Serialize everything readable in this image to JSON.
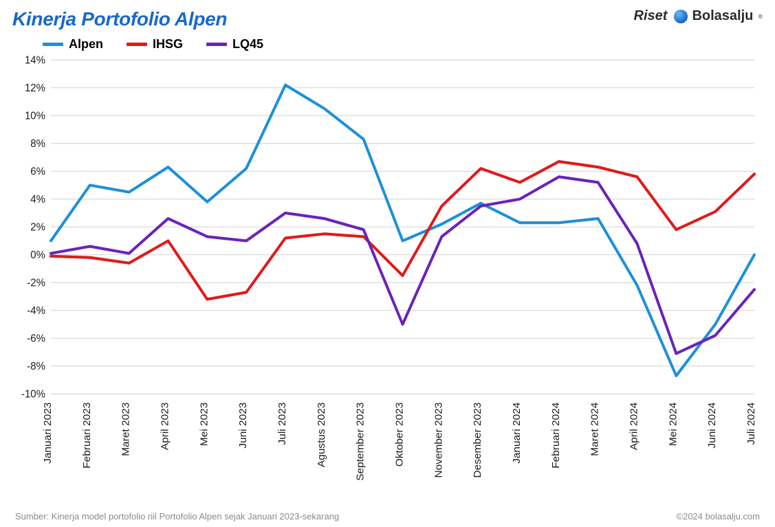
{
  "title": "Kinerja Portofolio Alpen",
  "brand": {
    "riset": "Riset",
    "name": "Bolasalju",
    "trademark": "®"
  },
  "footer": {
    "source": "Sumber: Kinerja model portofolio riil Portofolio Alpen sejak Januari 2023-sekarang",
    "copyright": "©2024 bolasalju.com"
  },
  "chart": {
    "type": "line",
    "background_color": "#ffffff",
    "grid_color": "#d0d0d0",
    "axis_color": "#1a1a1a",
    "line_width": 4,
    "title_color": "#1968c8",
    "title_fontsize": 28,
    "label_fontsize": 15,
    "legend_fontsize": 18,
    "ylim": [
      -10,
      14
    ],
    "ytick_step": 2,
    "y_suffix": "%",
    "x_labels": [
      "Januari 2023",
      "Februari 2023",
      "Maret 2023",
      "April 2023",
      "Mei 2023",
      "Juni 2023",
      "Juli 2023",
      "Agustus 2023",
      "September 2023",
      "Oktober 2023",
      "November 2023",
      "Desember 2023",
      "Januari 2024",
      "Februari 2024",
      "Maret 2024",
      "April 2024",
      "Mei 2024",
      "Juni 2024",
      "Juli 2024"
    ],
    "series": [
      {
        "name": "Alpen",
        "color": "#1e90d8",
        "values": [
          1.0,
          5.0,
          4.5,
          6.3,
          3.8,
          6.2,
          12.2,
          10.5,
          8.3,
          1.0,
          2.2,
          3.7,
          2.3,
          2.3,
          2.6,
          -2.2,
          -8.7,
          -5.0,
          0.0
        ]
      },
      {
        "name": "IHSG",
        "color": "#e11a1a",
        "values": [
          -0.1,
          -0.2,
          -0.6,
          1.0,
          -3.2,
          -2.7,
          1.2,
          1.5,
          1.3,
          -1.5,
          3.5,
          6.2,
          5.2,
          6.7,
          6.3,
          5.6,
          1.8,
          3.1,
          5.8
        ]
      },
      {
        "name": "LQ45",
        "color": "#6a23b8",
        "values": [
          0.1,
          0.6,
          0.1,
          2.6,
          1.3,
          1.0,
          3.0,
          2.6,
          1.8,
          -5.0,
          1.3,
          3.5,
          4.0,
          5.6,
          5.2,
          0.8,
          -7.1,
          -5.8,
          -2.5
        ]
      }
    ]
  }
}
